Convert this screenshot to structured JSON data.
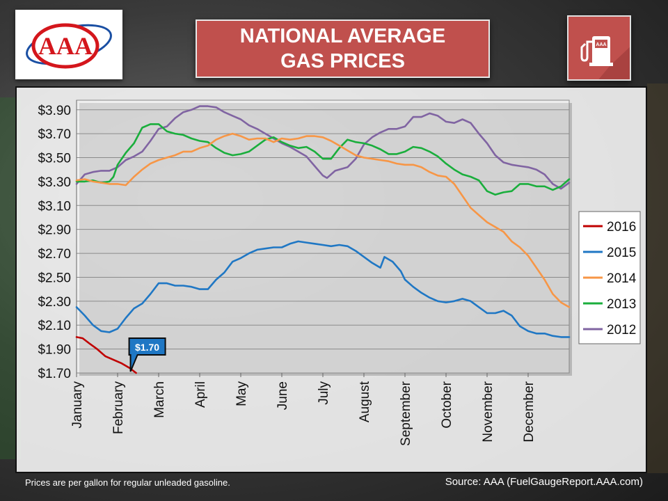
{
  "header": {
    "title_line1": "NATIONAL AVERAGE",
    "title_line2": "GAS PRICES",
    "logo_text": "AAA",
    "pump_logo_text": "AAA"
  },
  "footer": {
    "note": "Prices are per gallon for regular unleaded gasoline.",
    "source": "Source: AAA (FuelGaugeReport.AAA.com)"
  },
  "colors": {
    "accent_red": "#c0504d",
    "s2016": "#c00000",
    "s2015": "#1f77c4",
    "s2014": "#f79646",
    "s2013": "#1aae3c",
    "s2012": "#8064a2"
  },
  "chart_data": {
    "type": "line",
    "title": "NATIONAL AVERAGE GAS PRICES",
    "xlabel": "",
    "ylabel": "",
    "ylim": [
      1.7,
      3.98
    ],
    "y_ticks": [
      "$3.90",
      "$3.70",
      "$3.50",
      "$3.30",
      "$3.10",
      "$2.90",
      "$2.70",
      "$2.50",
      "$2.30",
      "$2.10",
      "$1.90",
      "$1.70"
    ],
    "y_tick_values": [
      3.9,
      3.7,
      3.5,
      3.3,
      3.1,
      2.9,
      2.7,
      2.5,
      2.3,
      2.1,
      1.9,
      1.7
    ],
    "x_ticks": [
      "January",
      "February",
      "March",
      "April",
      "May",
      "June",
      "July",
      "August",
      "September",
      "October",
      "November",
      "December"
    ],
    "xlim": [
      1,
      13
    ],
    "grid": "horizontal",
    "legend_position": "right",
    "callout": {
      "label": "$1.70",
      "x": 2.45,
      "y": 1.7,
      "series": "2016"
    },
    "series": [
      {
        "name": "2016",
        "color": "#c00000",
        "points": [
          [
            1.0,
            2.0
          ],
          [
            1.15,
            1.99
          ],
          [
            1.3,
            1.95
          ],
          [
            1.5,
            1.9
          ],
          [
            1.7,
            1.84
          ],
          [
            1.9,
            1.81
          ],
          [
            2.1,
            1.78
          ],
          [
            2.3,
            1.74
          ],
          [
            2.45,
            1.7
          ]
        ]
      },
      {
        "name": "2015",
        "color": "#1f77c4",
        "points": [
          [
            1.0,
            2.25
          ],
          [
            1.2,
            2.18
          ],
          [
            1.4,
            2.1
          ],
          [
            1.6,
            2.05
          ],
          [
            1.8,
            2.04
          ],
          [
            2.0,
            2.07
          ],
          [
            2.2,
            2.16
          ],
          [
            2.4,
            2.24
          ],
          [
            2.6,
            2.28
          ],
          [
            2.8,
            2.36
          ],
          [
            3.0,
            2.45
          ],
          [
            3.2,
            2.45
          ],
          [
            3.4,
            2.43
          ],
          [
            3.6,
            2.43
          ],
          [
            3.8,
            2.42
          ],
          [
            4.0,
            2.4
          ],
          [
            4.2,
            2.4
          ],
          [
            4.4,
            2.48
          ],
          [
            4.6,
            2.54
          ],
          [
            4.8,
            2.63
          ],
          [
            5.0,
            2.66
          ],
          [
            5.2,
            2.7
          ],
          [
            5.4,
            2.73
          ],
          [
            5.6,
            2.74
          ],
          [
            5.8,
            2.75
          ],
          [
            6.0,
            2.75
          ],
          [
            6.2,
            2.78
          ],
          [
            6.4,
            2.8
          ],
          [
            6.6,
            2.79
          ],
          [
            6.8,
            2.78
          ],
          [
            7.0,
            2.77
          ],
          [
            7.2,
            2.76
          ],
          [
            7.4,
            2.77
          ],
          [
            7.6,
            2.76
          ],
          [
            7.8,
            2.72
          ],
          [
            8.0,
            2.67
          ],
          [
            8.2,
            2.62
          ],
          [
            8.4,
            2.58
          ],
          [
            8.5,
            2.67
          ],
          [
            8.7,
            2.63
          ],
          [
            8.9,
            2.55
          ],
          [
            9.0,
            2.48
          ],
          [
            9.2,
            2.42
          ],
          [
            9.4,
            2.37
          ],
          [
            9.6,
            2.33
          ],
          [
            9.8,
            2.3
          ],
          [
            10.0,
            2.29
          ],
          [
            10.2,
            2.3
          ],
          [
            10.4,
            2.32
          ],
          [
            10.6,
            2.3
          ],
          [
            10.8,
            2.25
          ],
          [
            11.0,
            2.2
          ],
          [
            11.2,
            2.2
          ],
          [
            11.4,
            2.22
          ],
          [
            11.6,
            2.18
          ],
          [
            11.8,
            2.09
          ],
          [
            12.0,
            2.05
          ],
          [
            12.2,
            2.03
          ],
          [
            12.4,
            2.03
          ],
          [
            12.6,
            2.01
          ],
          [
            12.8,
            2.0
          ],
          [
            13.0,
            2.0
          ]
        ]
      },
      {
        "name": "2014",
        "color": "#f79646",
        "points": [
          [
            1.0,
            3.31
          ],
          [
            1.2,
            3.32
          ],
          [
            1.4,
            3.3
          ],
          [
            1.6,
            3.29
          ],
          [
            1.8,
            3.28
          ],
          [
            2.0,
            3.28
          ],
          [
            2.2,
            3.27
          ],
          [
            2.4,
            3.34
          ],
          [
            2.6,
            3.4
          ],
          [
            2.8,
            3.45
          ],
          [
            3.0,
            3.48
          ],
          [
            3.2,
            3.5
          ],
          [
            3.4,
            3.52
          ],
          [
            3.6,
            3.55
          ],
          [
            3.8,
            3.55
          ],
          [
            4.0,
            3.58
          ],
          [
            4.2,
            3.6
          ],
          [
            4.4,
            3.65
          ],
          [
            4.6,
            3.68
          ],
          [
            4.8,
            3.7
          ],
          [
            5.0,
            3.68
          ],
          [
            5.2,
            3.65
          ],
          [
            5.4,
            3.66
          ],
          [
            5.6,
            3.66
          ],
          [
            5.8,
            3.63
          ],
          [
            6.0,
            3.66
          ],
          [
            6.2,
            3.65
          ],
          [
            6.4,
            3.66
          ],
          [
            6.6,
            3.68
          ],
          [
            6.8,
            3.68
          ],
          [
            7.0,
            3.67
          ],
          [
            7.2,
            3.64
          ],
          [
            7.4,
            3.6
          ],
          [
            7.6,
            3.56
          ],
          [
            7.8,
            3.52
          ],
          [
            8.0,
            3.5
          ],
          [
            8.2,
            3.49
          ],
          [
            8.4,
            3.48
          ],
          [
            8.6,
            3.47
          ],
          [
            8.8,
            3.45
          ],
          [
            9.0,
            3.44
          ],
          [
            9.2,
            3.44
          ],
          [
            9.4,
            3.42
          ],
          [
            9.6,
            3.38
          ],
          [
            9.8,
            3.35
          ],
          [
            10.0,
            3.34
          ],
          [
            10.2,
            3.28
          ],
          [
            10.4,
            3.18
          ],
          [
            10.6,
            3.08
          ],
          [
            10.8,
            3.02
          ],
          [
            11.0,
            2.96
          ],
          [
            11.2,
            2.92
          ],
          [
            11.4,
            2.88
          ],
          [
            11.6,
            2.8
          ],
          [
            11.8,
            2.75
          ],
          [
            12.0,
            2.68
          ],
          [
            12.2,
            2.58
          ],
          [
            12.4,
            2.48
          ],
          [
            12.6,
            2.36
          ],
          [
            12.8,
            2.29
          ],
          [
            13.0,
            2.25
          ]
        ]
      },
      {
        "name": "2013",
        "color": "#1aae3c",
        "points": [
          [
            1.0,
            3.3
          ],
          [
            1.2,
            3.3
          ],
          [
            1.4,
            3.31
          ],
          [
            1.6,
            3.29
          ],
          [
            1.8,
            3.3
          ],
          [
            1.9,
            3.34
          ],
          [
            2.0,
            3.44
          ],
          [
            2.2,
            3.54
          ],
          [
            2.4,
            3.62
          ],
          [
            2.6,
            3.75
          ],
          [
            2.8,
            3.78
          ],
          [
            3.0,
            3.78
          ],
          [
            3.2,
            3.72
          ],
          [
            3.4,
            3.7
          ],
          [
            3.6,
            3.69
          ],
          [
            3.8,
            3.66
          ],
          [
            4.0,
            3.64
          ],
          [
            4.2,
            3.63
          ],
          [
            4.4,
            3.58
          ],
          [
            4.6,
            3.54
          ],
          [
            4.8,
            3.52
          ],
          [
            5.0,
            3.53
          ],
          [
            5.2,
            3.55
          ],
          [
            5.4,
            3.6
          ],
          [
            5.6,
            3.65
          ],
          [
            5.8,
            3.67
          ],
          [
            6.0,
            3.63
          ],
          [
            6.2,
            3.6
          ],
          [
            6.4,
            3.58
          ],
          [
            6.6,
            3.59
          ],
          [
            6.8,
            3.55
          ],
          [
            7.0,
            3.49
          ],
          [
            7.2,
            3.49
          ],
          [
            7.4,
            3.58
          ],
          [
            7.6,
            3.65
          ],
          [
            7.8,
            3.63
          ],
          [
            8.0,
            3.62
          ],
          [
            8.2,
            3.6
          ],
          [
            8.4,
            3.57
          ],
          [
            8.6,
            3.53
          ],
          [
            8.8,
            3.53
          ],
          [
            9.0,
            3.55
          ],
          [
            9.2,
            3.59
          ],
          [
            9.4,
            3.58
          ],
          [
            9.6,
            3.55
          ],
          [
            9.8,
            3.51
          ],
          [
            10.0,
            3.45
          ],
          [
            10.2,
            3.4
          ],
          [
            10.4,
            3.36
          ],
          [
            10.6,
            3.34
          ],
          [
            10.8,
            3.31
          ],
          [
            11.0,
            3.22
          ],
          [
            11.2,
            3.19
          ],
          [
            11.4,
            3.21
          ],
          [
            11.6,
            3.22
          ],
          [
            11.8,
            3.28
          ],
          [
            12.0,
            3.28
          ],
          [
            12.2,
            3.26
          ],
          [
            12.4,
            3.26
          ],
          [
            12.6,
            3.23
          ],
          [
            12.8,
            3.26
          ],
          [
            13.0,
            3.32
          ]
        ]
      },
      {
        "name": "2012",
        "color": "#8064a2",
        "points": [
          [
            1.0,
            3.28
          ],
          [
            1.2,
            3.36
          ],
          [
            1.4,
            3.38
          ],
          [
            1.6,
            3.39
          ],
          [
            1.8,
            3.39
          ],
          [
            2.0,
            3.42
          ],
          [
            2.2,
            3.48
          ],
          [
            2.4,
            3.51
          ],
          [
            2.6,
            3.55
          ],
          [
            2.8,
            3.64
          ],
          [
            3.0,
            3.74
          ],
          [
            3.2,
            3.76
          ],
          [
            3.4,
            3.83
          ],
          [
            3.6,
            3.88
          ],
          [
            3.8,
            3.9
          ],
          [
            4.0,
            3.93
          ],
          [
            4.2,
            3.93
          ],
          [
            4.4,
            3.92
          ],
          [
            4.6,
            3.88
          ],
          [
            4.8,
            3.85
          ],
          [
            5.0,
            3.82
          ],
          [
            5.2,
            3.77
          ],
          [
            5.4,
            3.74
          ],
          [
            5.6,
            3.7
          ],
          [
            5.8,
            3.66
          ],
          [
            6.0,
            3.62
          ],
          [
            6.2,
            3.59
          ],
          [
            6.4,
            3.55
          ],
          [
            6.6,
            3.51
          ],
          [
            6.8,
            3.43
          ],
          [
            7.0,
            3.35
          ],
          [
            7.1,
            3.33
          ],
          [
            7.3,
            3.39
          ],
          [
            7.6,
            3.42
          ],
          [
            7.8,
            3.49
          ],
          [
            8.0,
            3.61
          ],
          [
            8.2,
            3.67
          ],
          [
            8.4,
            3.71
          ],
          [
            8.6,
            3.74
          ],
          [
            8.8,
            3.74
          ],
          [
            9.0,
            3.76
          ],
          [
            9.2,
            3.84
          ],
          [
            9.4,
            3.84
          ],
          [
            9.6,
            3.87
          ],
          [
            9.8,
            3.85
          ],
          [
            10.0,
            3.8
          ],
          [
            10.2,
            3.79
          ],
          [
            10.4,
            3.82
          ],
          [
            10.6,
            3.79
          ],
          [
            10.8,
            3.7
          ],
          [
            11.0,
            3.62
          ],
          [
            11.2,
            3.52
          ],
          [
            11.4,
            3.46
          ],
          [
            11.6,
            3.44
          ],
          [
            11.8,
            3.43
          ],
          [
            12.0,
            3.42
          ],
          [
            12.2,
            3.4
          ],
          [
            12.4,
            3.36
          ],
          [
            12.6,
            3.28
          ],
          [
            12.8,
            3.24
          ],
          [
            13.0,
            3.29
          ]
        ]
      }
    ]
  }
}
